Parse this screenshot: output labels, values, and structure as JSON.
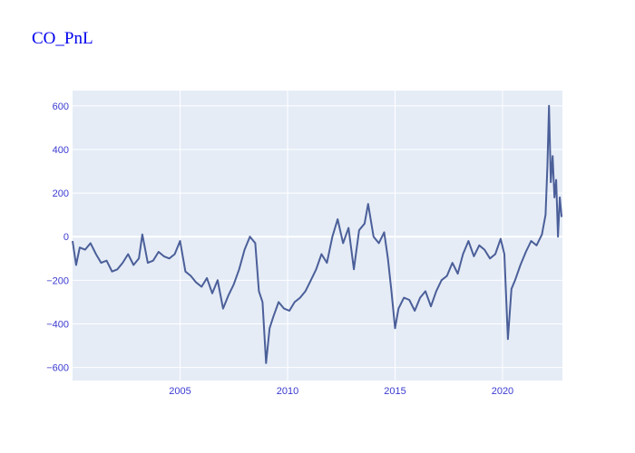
{
  "colors": {
    "title": "#0000ee",
    "plot_bg": "#e5ecf6",
    "grid": "#ffffff",
    "line": "#4b5f99",
    "tick": "#3a3ad0"
  },
  "chart_data": {
    "type": "line",
    "title": "CO_PnL",
    "xlabel": "",
    "ylabel": "",
    "x_axis": "date",
    "xlim": [
      "2000-01-01",
      "2022-10-15"
    ],
    "ylim": [
      -660,
      670
    ],
    "x_ticks": [
      {
        "date": "2005-01-01",
        "label": "2005"
      },
      {
        "date": "2010-01-01",
        "label": "2010"
      },
      {
        "date": "2015-01-01",
        "label": "2015"
      },
      {
        "date": "2020-01-01",
        "label": "2020"
      }
    ],
    "y_ticks": [
      {
        "value": 600,
        "label": "600"
      },
      {
        "value": 400,
        "label": "400"
      },
      {
        "value": 200,
        "label": "200"
      },
      {
        "value": 0,
        "label": "0"
      },
      {
        "value": -200,
        "label": "−200"
      },
      {
        "value": -400,
        "label": "−400"
      },
      {
        "value": -600,
        "label": "−600"
      }
    ],
    "grid": true,
    "legend": false,
    "series": [
      {
        "x": [
          "2000-01-01",
          "2000-03-01",
          "2000-05-01",
          "2000-08-01",
          "2000-11-01",
          "2001-02-01",
          "2001-05-01",
          "2001-08-01",
          "2001-11-01",
          "2002-02-01",
          "2002-05-01",
          "2002-08-01",
          "2002-11-01",
          "2003-02-01",
          "2003-04-01",
          "2003-07-01",
          "2003-10-01",
          "2004-01-01",
          "2004-04-01",
          "2004-07-01",
          "2004-10-01",
          "2005-01-01",
          "2005-04-01",
          "2005-07-01",
          "2005-10-01",
          "2006-01-01",
          "2006-04-01",
          "2006-07-01",
          "2006-10-01",
          "2007-01-01",
          "2007-04-01",
          "2007-07-01",
          "2007-10-01",
          "2008-01-01",
          "2008-04-01",
          "2008-07-01",
          "2008-09-01",
          "2008-11-01",
          "2009-01-01",
          "2009-03-01",
          "2009-05-01",
          "2009-08-01",
          "2009-11-01",
          "2010-02-01",
          "2010-05-01",
          "2010-08-01",
          "2010-11-01",
          "2011-02-01",
          "2011-05-01",
          "2011-08-01",
          "2011-11-01",
          "2012-02-01",
          "2012-05-01",
          "2012-08-01",
          "2012-11-01",
          "2013-02-01",
          "2013-05-01",
          "2013-08-01",
          "2013-10-01",
          "2014-01-01",
          "2014-04-01",
          "2014-07-01",
          "2014-09-01",
          "2014-11-01",
          "2015-01-01",
          "2015-03-01",
          "2015-06-01",
          "2015-09-01",
          "2015-12-01",
          "2016-03-01",
          "2016-06-01",
          "2016-09-01",
          "2016-12-01",
          "2017-03-01",
          "2017-06-01",
          "2017-09-01",
          "2017-12-01",
          "2018-03-01",
          "2018-06-01",
          "2018-09-01",
          "2018-12-01",
          "2019-03-01",
          "2019-06-01",
          "2019-09-01",
          "2019-12-01",
          "2020-02-01",
          "2020-04-01",
          "2020-06-01",
          "2020-08-01",
          "2020-11-01",
          "2021-02-01",
          "2021-05-01",
          "2021-08-01",
          "2021-11-01",
          "2022-01-01",
          "2022-02-01",
          "2022-03-01",
          "2022-04-01",
          "2022-05-01",
          "2022-06-01",
          "2022-07-01",
          "2022-08-01",
          "2022-09-01",
          "2022-10-01"
        ],
        "y": [
          -20,
          -130,
          -50,
          -60,
          -30,
          -80,
          -120,
          -110,
          -160,
          -150,
          -120,
          -80,
          -130,
          -100,
          10,
          -120,
          -110,
          -70,
          -90,
          -100,
          -80,
          -20,
          -160,
          -180,
          -210,
          -230,
          -190,
          -260,
          -200,
          -330,
          -270,
          -220,
          -150,
          -60,
          0,
          -30,
          -250,
          -300,
          -580,
          -420,
          -370,
          -300,
          -330,
          -340,
          -300,
          -280,
          -250,
          -200,
          -150,
          -80,
          -120,
          0,
          80,
          -30,
          40,
          -150,
          30,
          60,
          150,
          0,
          -30,
          20,
          -100,
          -250,
          -420,
          -330,
          -280,
          -290,
          -340,
          -280,
          -250,
          -320,
          -250,
          -200,
          -180,
          -120,
          -170,
          -80,
          -20,
          -90,
          -40,
          -60,
          -100,
          -80,
          -10,
          -80,
          -470,
          -240,
          -200,
          -130,
          -70,
          -20,
          -40,
          10,
          100,
          320,
          600,
          250,
          370,
          180,
          260,
          0,
          180,
          90
        ]
      }
    ]
  }
}
